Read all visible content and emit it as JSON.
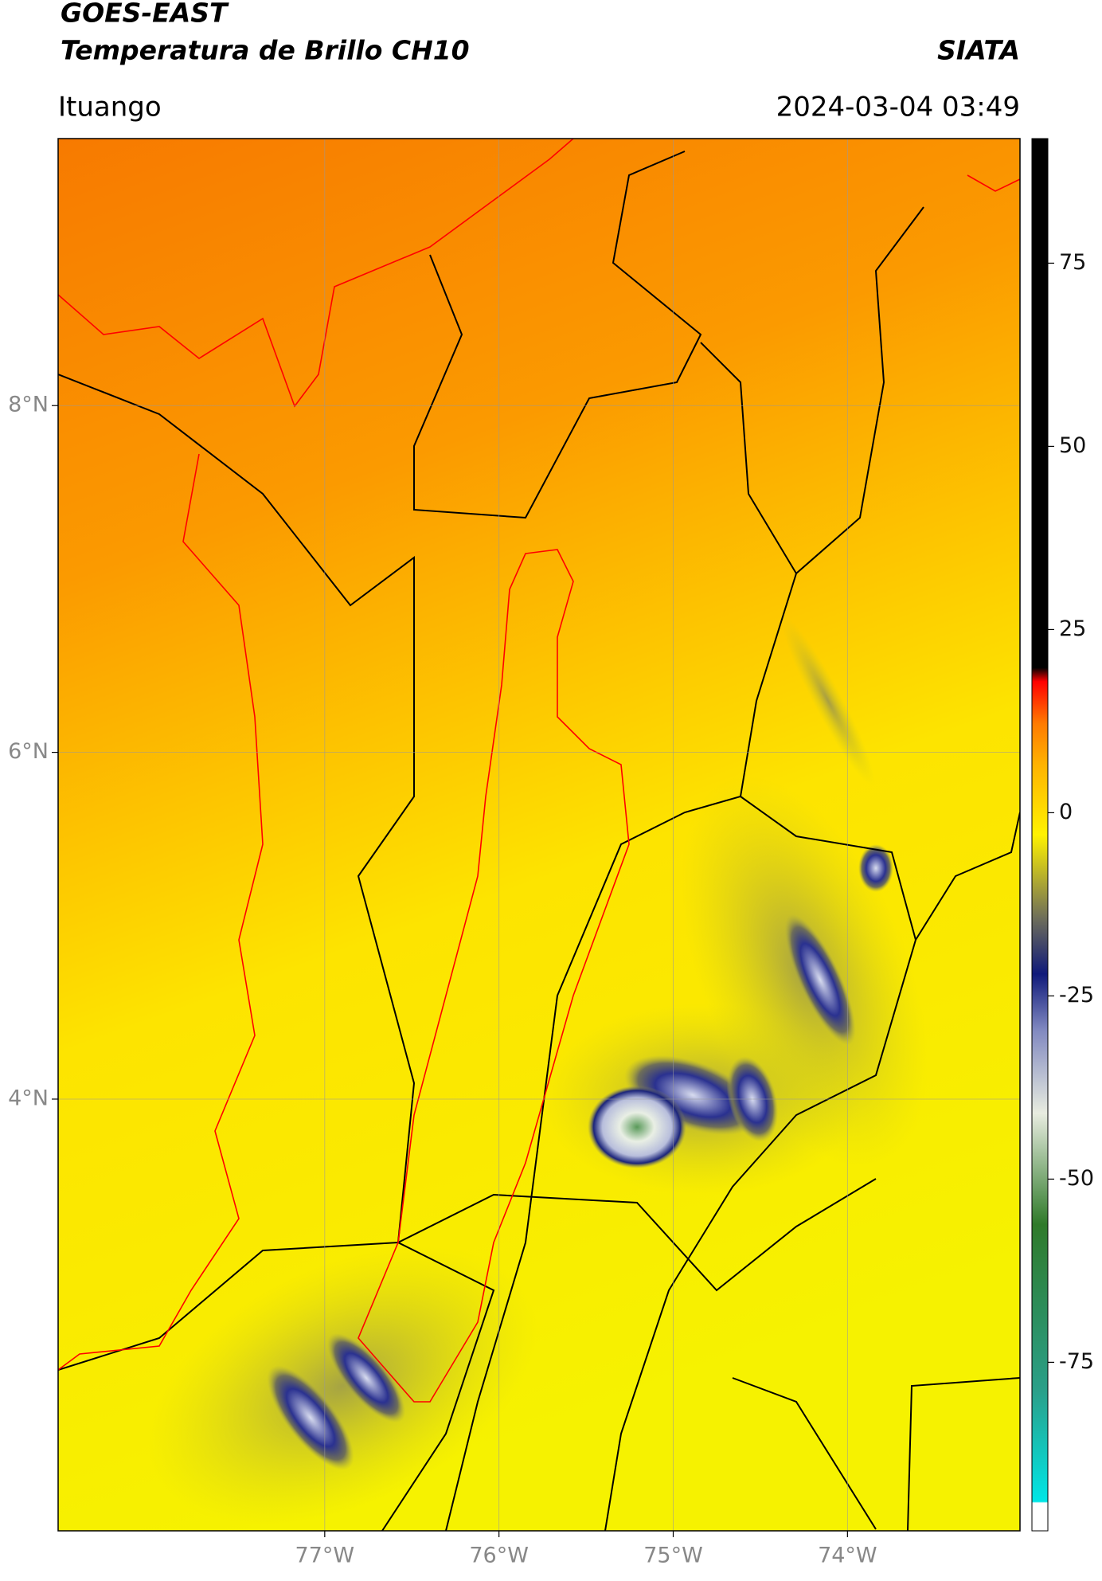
{
  "header": {
    "title": "GOES-EAST",
    "subtitle": "Temperatura de Brillo CH10",
    "agency": "SIATA",
    "location": "Ituango",
    "timestamp": "2024-03-04 03:49"
  },
  "map": {
    "xlim": [
      -78.53,
      -73.01
    ],
    "ylim": [
      1.51,
      9.54
    ],
    "xticks": [
      {
        "value": -77,
        "label": "77°W"
      },
      {
        "value": -76,
        "label": "76°W"
      },
      {
        "value": -75,
        "label": "75°W"
      },
      {
        "value": -74,
        "label": "74°W"
      }
    ],
    "yticks": [
      {
        "value": 8,
        "label": "8°N"
      },
      {
        "value": 6,
        "label": "6°N"
      },
      {
        "value": 4,
        "label": "4°N"
      }
    ],
    "grid": true
  },
  "colorbar": {
    "lim": [
      -98,
      92
    ],
    "ticks": [
      75,
      50,
      25,
      0,
      -25,
      -50,
      -75
    ]
  }
}
